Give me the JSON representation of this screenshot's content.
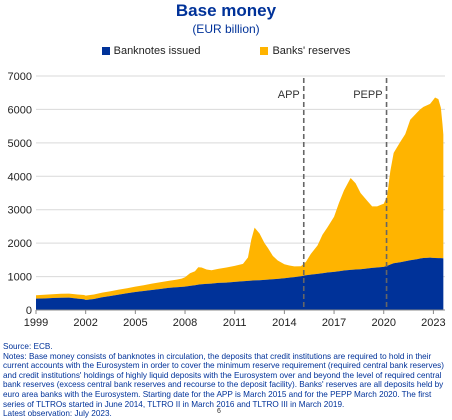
{
  "title": "Base money",
  "subtitle": "(EUR billion)",
  "legend": [
    {
      "label": "Banknotes issued",
      "color": "#003299"
    },
    {
      "label": "Banks' reserves",
      "color": "#FFB400"
    }
  ],
  "source": "Source: ECB.",
  "notes": "Notes: Base money consists of banknotes in circulation, the deposits that credit institutions are required to hold in their current accounts with the Eurosystem in order to cover the minimum reserve requirement (required central bank reserves) and credit institutions' holdings of highly liquid deposits with the Eurosystem over and beyond the level of required central bank reserves (excess central bank reserves and recourse to the deposit facility). Banks' reserves are all deposits held by euro area banks with the Eurosystem. Starting date for the APP is March 2015 and for the PEPP March 2020. The first series of TLTROs started in June 2014, TLTRO II in March 2016 and TLTRO III in March 2019.",
  "latest": "Latest observation: July 2023.",
  "page_number": "6",
  "chart_data": {
    "type": "area",
    "stacked": true,
    "xlim": [
      1999,
      2023.7
    ],
    "ylim": [
      0,
      7000
    ],
    "xticks": [
      1999,
      2002,
      2005,
      2008,
      2011,
      2014,
      2017,
      2020,
      2023
    ],
    "yticks": [
      0,
      1000,
      2000,
      3000,
      4000,
      5000,
      6000,
      7000
    ],
    "grid": "horizontal",
    "legend_position": "top",
    "annotations": [
      {
        "label": "APP",
        "x": 2015.17
      },
      {
        "label": "PEPP",
        "x": 2020.17
      }
    ],
    "x": [
      1999.0,
      1999.5,
      2000.0,
      2000.5,
      2001.0,
      2001.5,
      2001.9,
      2002.0,
      2002.5,
      2003.0,
      2003.5,
      2004.0,
      2004.5,
      2005.0,
      2005.5,
      2006.0,
      2006.5,
      2007.0,
      2007.5,
      2007.8,
      2008.0,
      2008.3,
      2008.6,
      2008.8,
      2009.0,
      2009.3,
      2009.6,
      2010.0,
      2010.5,
      2011.0,
      2011.5,
      2011.8,
      2012.0,
      2012.2,
      2012.5,
      2012.8,
      2013.0,
      2013.3,
      2013.6,
      2014.0,
      2014.3,
      2014.6,
      2015.0,
      2015.3,
      2015.6,
      2016.0,
      2016.3,
      2016.6,
      2017.0,
      2017.3,
      2017.6,
      2018.0,
      2018.3,
      2018.6,
      2019.0,
      2019.3,
      2019.6,
      2020.0,
      2020.2,
      2020.4,
      2020.6,
      2021.0,
      2021.3,
      2021.6,
      2022.0,
      2022.2,
      2022.4,
      2022.6,
      2022.8,
      2022.95,
      2023.1,
      2023.3,
      2023.45,
      2023.55,
      2023.6
    ],
    "series": [
      {
        "name": "Banknotes issued",
        "color": "#003299",
        "values": [
          340,
          345,
          360,
          365,
          370,
          340,
          320,
          300,
          330,
          380,
          420,
          460,
          500,
          540,
          570,
          600,
          630,
          660,
          680,
          690,
          700,
          720,
          740,
          760,
          770,
          780,
          790,
          810,
          820,
          840,
          860,
          870,
          880,
          885,
          890,
          900,
          910,
          920,
          930,
          950,
          970,
          985,
          1010,
          1040,
          1060,
          1080,
          1100,
          1120,
          1140,
          1160,
          1180,
          1200,
          1210,
          1220,
          1240,
          1260,
          1270,
          1290,
          1320,
          1360,
          1400,
          1430,
          1460,
          1490,
          1520,
          1540,
          1555,
          1560,
          1565,
          1560,
          1555,
          1550,
          1550,
          1548,
          1545
        ]
      },
      {
        "name": "Banks' reserves",
        "color": "#FFB400",
        "values": [
          100,
          110,
          110,
          120,
          120,
          125,
          130,
          130,
          135,
          140,
          140,
          150,
          150,
          160,
          170,
          190,
          200,
          210,
          230,
          250,
          280,
          380,
          420,
          520,
          500,
          430,
          400,
          420,
          450,
          480,
          520,
          700,
          1220,
          1580,
          1400,
          1100,
          950,
          700,
          550,
          420,
          360,
          320,
          300,
          400,
          620,
          850,
          1150,
          1350,
          1650,
          2050,
          2400,
          2750,
          2580,
          2280,
          2030,
          1840,
          1830,
          1890,
          2080,
          2800,
          3300,
          3600,
          3800,
          4200,
          4380,
          4460,
          4520,
          4560,
          4600,
          4700,
          4800,
          4760,
          4500,
          4000,
          3700
        ]
      }
    ]
  }
}
